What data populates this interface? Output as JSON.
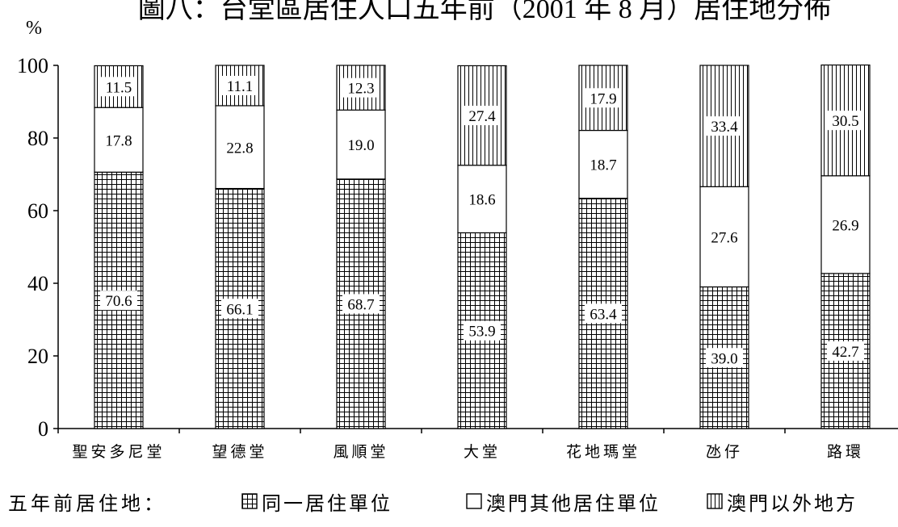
{
  "chart_data": {
    "type": "bar",
    "stacked": true,
    "title": "圖八：台堂區居住人口五年前（2001 年 8 月）居住地分佈",
    "ylabel": "%",
    "ylim": [
      0,
      100
    ],
    "yticks": [
      0,
      20,
      40,
      60,
      80,
      100
    ],
    "categories": [
      "聖安多尼堂",
      "望德堂",
      "風順堂",
      "大堂",
      "花地瑪堂",
      "氹仔",
      "路環"
    ],
    "series": [
      {
        "name": "同一居住單位",
        "pattern": "grid",
        "values": [
          70.6,
          66.1,
          68.7,
          53.9,
          63.4,
          39.0,
          42.7
        ]
      },
      {
        "name": "澳門其他居住單位",
        "pattern": "blank",
        "values": [
          17.8,
          22.8,
          19.0,
          18.6,
          18.7,
          27.6,
          26.9
        ]
      },
      {
        "name": "澳門以外地方",
        "pattern": "vertical",
        "values": [
          11.5,
          11.1,
          12.3,
          27.4,
          17.9,
          33.4,
          30.5
        ]
      }
    ],
    "legend": {
      "title": "五年前居住地：",
      "placement": "bottom"
    },
    "grid": false
  }
}
